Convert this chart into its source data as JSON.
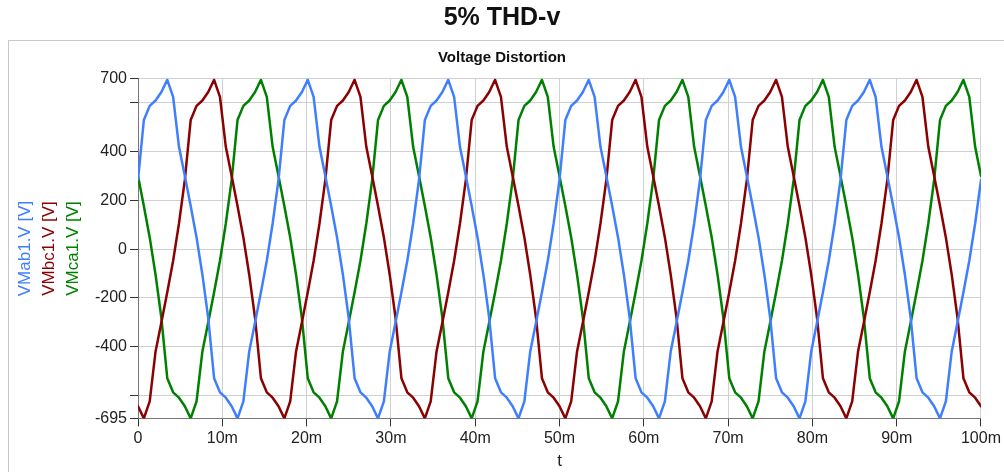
{
  "chart_data": {
    "type": "line",
    "title": "5% THD-v",
    "subtitle": "Voltage Distortion",
    "xlabel": "t",
    "x": [
      0,
      0.694,
      1.389,
      2.083,
      2.778,
      3.472,
      4.167,
      4.861,
      5.556,
      6.25,
      6.944,
      7.639,
      8.333,
      9.028,
      9.722,
      10.417,
      11.111,
      11.806,
      12.5,
      13.194,
      13.889,
      14.583,
      15.278,
      15.972,
      16.667,
      17.361,
      18.056,
      18.75,
      19.444,
      20.139,
      20.833,
      21.528,
      22.222,
      22.917,
      23.611,
      24.306,
      25,
      25.694,
      26.389,
      27.083,
      27.778,
      28.472,
      29.167,
      29.861,
      30.556,
      31.25,
      31.944,
      32.639,
      33.333,
      34.028,
      34.722,
      35.417,
      36.111,
      36.806,
      37.5,
      38.194,
      38.889,
      39.583,
      40.278,
      40.972,
      41.667,
      42.361,
      43.056,
      43.75,
      44.444,
      45.139,
      45.833,
      46.528,
      47.222,
      47.917,
      48.611,
      49.306,
      50,
      50.694,
      51.389,
      52.083,
      52.778,
      53.472,
      54.167,
      54.861,
      55.556,
      56.25,
      56.944,
      57.639,
      58.333,
      59.028,
      59.722,
      60.417,
      61.111,
      61.806,
      62.5,
      63.194,
      63.889,
      64.583,
      65.278,
      65.972,
      66.667,
      67.361,
      68.056,
      68.75,
      69.444,
      70.139,
      70.833,
      71.528,
      72.222,
      72.917,
      73.611,
      74.306,
      75,
      75.694,
      76.389,
      77.083,
      77.778,
      78.472,
      79.167,
      79.861,
      80.556,
      81.25,
      81.944,
      82.639,
      83.333,
      84.028,
      84.722,
      85.417,
      86.111,
      86.806,
      87.5,
      88.194,
      88.889,
      89.583,
      90.278,
      90.972,
      91.667,
      92.361,
      93.056,
      93.75,
      94.444,
      95.139,
      95.833,
      96.528,
      97.222,
      97.917,
      98.611,
      99.306,
      100
    ],
    "series": [
      {
        "name": "VMab1.V [V]",
        "color": "#3f7fff",
        "values": [
          284,
          530,
          588,
          610,
          645,
          695,
          625,
          420,
          300,
          177,
          48,
          -105,
          -284,
          -530,
          -588,
          -610,
          -645,
          -695,
          -625,
          -420,
          -300,
          -177,
          -48,
          105,
          284,
          530,
          588,
          610,
          645,
          695,
          625,
          420,
          300,
          177,
          48,
          -105,
          -284,
          -530,
          -588,
          -610,
          -645,
          -695,
          -625,
          -420,
          -300,
          -177,
          -48,
          105,
          284,
          530,
          588,
          610,
          645,
          695,
          625,
          420,
          300,
          177,
          48,
          -105,
          -284,
          -530,
          -588,
          -610,
          -645,
          -695,
          -625,
          -420,
          -300,
          -177,
          -48,
          105,
          284,
          530,
          588,
          610,
          645,
          695,
          625,
          420,
          300,
          177,
          48,
          -105,
          -284,
          -530,
          -588,
          -610,
          -645,
          -695,
          -625,
          -420,
          -300,
          -177,
          -48,
          105,
          284,
          530,
          588,
          610,
          645,
          695,
          625,
          420,
          300,
          177,
          48,
          -105,
          -284,
          -530,
          -588,
          -610,
          -645,
          -695,
          -625,
          -420,
          -300,
          -177,
          -48,
          105,
          284,
          530,
          588,
          610,
          645,
          695,
          625,
          420,
          300,
          177,
          48,
          -105,
          -284,
          -530,
          -588,
          -610,
          -645,
          -695,
          -625,
          -420,
          -300,
          -177,
          -48,
          105,
          284
        ]
      },
      {
        "name": "VMbc1.V [V]",
        "color": "#8b0000",
        "values": [
          -645,
          -695,
          -625,
          -420,
          -300,
          -177,
          -48,
          105,
          284,
          530,
          588,
          610,
          645,
          695,
          625,
          420,
          300,
          177,
          48,
          -105,
          -284,
          -530,
          -588,
          -610,
          -645,
          -695,
          -625,
          -420,
          -300,
          -177,
          -48,
          105,
          284,
          530,
          588,
          610,
          645,
          695,
          625,
          420,
          300,
          177,
          48,
          -105,
          -284,
          -530,
          -588,
          -610,
          -645,
          -695,
          -625,
          -420,
          -300,
          -177,
          -48,
          105,
          284,
          530,
          588,
          610,
          645,
          695,
          625,
          420,
          300,
          177,
          48,
          -105,
          -284,
          -530,
          -588,
          -610,
          -645,
          -695,
          -625,
          -420,
          -300,
          -177,
          -48,
          105,
          284,
          530,
          588,
          610,
          645,
          695,
          625,
          420,
          300,
          177,
          48,
          -105,
          -284,
          -530,
          -588,
          -610,
          -645,
          -695,
          -625,
          -420,
          -300,
          -177,
          -48,
          105,
          284,
          530,
          588,
          610,
          645,
          695,
          625,
          420,
          300,
          177,
          48,
          -105,
          -284,
          -530,
          -588,
          -610,
          -645,
          -695,
          -625,
          -420,
          -300,
          -177,
          -48,
          105,
          284,
          530,
          588,
          610,
          645,
          695,
          625,
          420,
          300,
          177,
          48,
          -105,
          -284,
          -530,
          -588,
          -610,
          -645
        ]
      },
      {
        "name": "VMca1.V [V]",
        "color": "#008000",
        "values": [
          300,
          177,
          48,
          -105,
          -284,
          -530,
          -588,
          -610,
          -645,
          -695,
          -625,
          -420,
          -300,
          -177,
          -48,
          105,
          284,
          530,
          588,
          610,
          645,
          695,
          625,
          420,
          300,
          177,
          48,
          -105,
          -284,
          -530,
          -588,
          -610,
          -645,
          -695,
          -625,
          -420,
          -300,
          -177,
          -48,
          105,
          284,
          530,
          588,
          610,
          645,
          695,
          625,
          420,
          300,
          177,
          48,
          -105,
          -284,
          -530,
          -588,
          -610,
          -645,
          -695,
          -625,
          -420,
          -300,
          -177,
          -48,
          105,
          284,
          530,
          588,
          610,
          645,
          695,
          625,
          420,
          300,
          177,
          48,
          -105,
          -284,
          -530,
          -588,
          -610,
          -645,
          -695,
          -625,
          -420,
          -300,
          -177,
          -48,
          105,
          284,
          530,
          588,
          610,
          645,
          695,
          625,
          420,
          300,
          177,
          48,
          -105,
          -284,
          -530,
          -588,
          -610,
          -645,
          -695,
          -625,
          -420,
          -300,
          -177,
          -48,
          105,
          284,
          530,
          588,
          610,
          645,
          695,
          625,
          420,
          300,
          177,
          48,
          -105,
          -284,
          -530,
          -588,
          -610,
          -645,
          -695,
          -625,
          -420,
          -300,
          -177,
          -48,
          105,
          284,
          530,
          588,
          610,
          645,
          695,
          625,
          420,
          300
        ]
      }
    ],
    "xlim": [
      0,
      100
    ],
    "xticks": [
      0,
      {
        "value": 10,
        "label": "10m"
      },
      {
        "value": 20,
        "label": "20m"
      },
      {
        "value": 30,
        "label": "30m"
      },
      {
        "value": 40,
        "label": "40m"
      },
      {
        "value": 50,
        "label": "50m"
      },
      {
        "value": 60,
        "label": "60m"
      },
      {
        "value": 70,
        "label": "70m"
      },
      {
        "value": 80,
        "label": "80m"
      },
      {
        "value": 90,
        "label": "90m"
      },
      {
        "value": 100,
        "label": "100m"
      }
    ],
    "ylim": [
      -695,
      700
    ],
    "yticks": [
      -695,
      {
        "value": -600,
        "label": null
      },
      -400,
      -200,
      0,
      200,
      400,
      {
        "value": 600,
        "label": null
      },
      700
    ],
    "grid": true,
    "legend": "left",
    "marker": "none",
    "line_style": "solid"
  }
}
